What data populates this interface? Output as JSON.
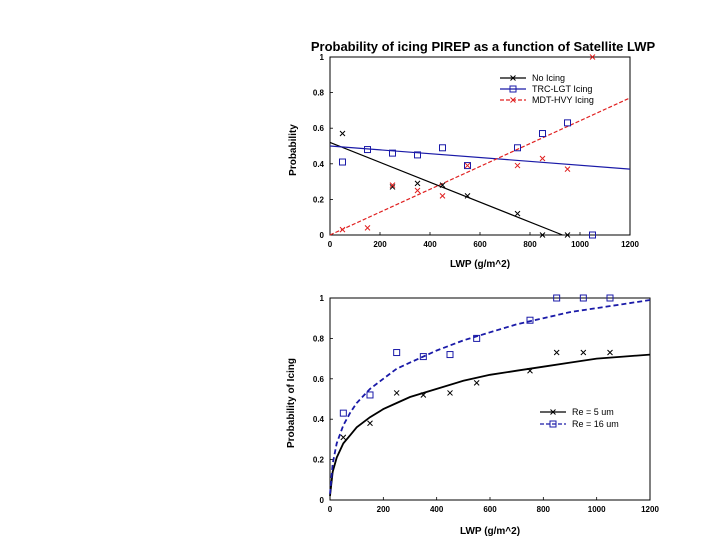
{
  "colors": {
    "black": "#000000",
    "blue": "#1a1aa8",
    "red": "#e02020",
    "frame": "#000000"
  },
  "chart_data": [
    {
      "type": "scatter",
      "title": "Probability of icing PIREP as a function of Satellite LWP",
      "xlabel": "LWP (g/m^2)",
      "ylabel": "Probability",
      "xlim": [
        0,
        1200
      ],
      "ylim": [
        0,
        1
      ],
      "xticks": [
        "0",
        "200",
        "400",
        "600",
        "800",
        "1000",
        "1200"
      ],
      "yticks": [
        "0",
        "0.2",
        "0.4",
        "0.6",
        "0.8",
        "1"
      ],
      "legend_position": "top-right",
      "series": [
        {
          "name": "No Icing",
          "color": "#000000",
          "marker": "x",
          "line": "solid",
          "fit": [
            [
              0,
              0.52
            ],
            [
              930,
              0.0
            ]
          ],
          "points": [
            [
              50,
              0.57
            ],
            [
              250,
              0.27
            ],
            [
              350,
              0.29
            ],
            [
              450,
              0.28
            ],
            [
              550,
              0.22
            ],
            [
              750,
              0.12
            ],
            [
              850,
              0.0
            ],
            [
              950,
              0.0
            ]
          ]
        },
        {
          "name": "TRC-LGT Icing",
          "color": "#1a1aa8",
          "marker": "square",
          "line": "solid",
          "fit": [
            [
              0,
              0.5
            ],
            [
              1200,
              0.37
            ]
          ],
          "points": [
            [
              50,
              0.41
            ],
            [
              150,
              0.48
            ],
            [
              250,
              0.46
            ],
            [
              350,
              0.45
            ],
            [
              450,
              0.49
            ],
            [
              550,
              0.39
            ],
            [
              750,
              0.49
            ],
            [
              850,
              0.57
            ],
            [
              950,
              0.63
            ],
            [
              1050,
              0.0
            ]
          ]
        },
        {
          "name": "MDT-HVY Icing",
          "color": "#e02020",
          "marker": "x",
          "line": "dashed",
          "fit": [
            [
              0,
              0.0
            ],
            [
              1200,
              0.77
            ]
          ],
          "points": [
            [
              50,
              0.03
            ],
            [
              150,
              0.04
            ],
            [
              250,
              0.28
            ],
            [
              350,
              0.25
            ],
            [
              450,
              0.22
            ],
            [
              550,
              0.39
            ],
            [
              750,
              0.39
            ],
            [
              850,
              0.43
            ],
            [
              950,
              0.37
            ],
            [
              1050,
              1.0
            ]
          ]
        }
      ]
    },
    {
      "type": "scatter",
      "title": "",
      "xlabel": "LWP (g/m^2)",
      "ylabel": "Probability of Icing",
      "xlim": [
        0,
        1200
      ],
      "ylim": [
        0,
        1
      ],
      "xticks": [
        "0",
        "200",
        "400",
        "600",
        "800",
        "1000",
        "1200"
      ],
      "yticks": [
        "0",
        "0.2",
        "0.4",
        "0.6",
        "0.8",
        "1"
      ],
      "legend_position": "bottom-right",
      "series": [
        {
          "name": "Re = 5 um",
          "color": "#000000",
          "marker": "x",
          "line": "solid",
          "curve": [
            [
              0,
              0.02
            ],
            [
              10,
              0.14
            ],
            [
              25,
              0.21
            ],
            [
              50,
              0.28
            ],
            [
              75,
              0.32
            ],
            [
              100,
              0.36
            ],
            [
              150,
              0.41
            ],
            [
              200,
              0.45
            ],
            [
              250,
              0.48
            ],
            [
              300,
              0.51
            ],
            [
              400,
              0.55
            ],
            [
              500,
              0.59
            ],
            [
              600,
              0.62
            ],
            [
              700,
              0.64
            ],
            [
              800,
              0.66
            ],
            [
              900,
              0.68
            ],
            [
              1000,
              0.7
            ],
            [
              1100,
              0.71
            ],
            [
              1200,
              0.72
            ]
          ],
          "points": [
            [
              50,
              0.31
            ],
            [
              150,
              0.38
            ],
            [
              250,
              0.53
            ],
            [
              350,
              0.52
            ],
            [
              450,
              0.53
            ],
            [
              550,
              0.58
            ],
            [
              750,
              0.64
            ],
            [
              850,
              0.73
            ],
            [
              950,
              0.73
            ],
            [
              1050,
              0.73
            ]
          ]
        },
        {
          "name": "Re = 16 um",
          "color": "#1a1aa8",
          "marker": "square",
          "line": "dashed",
          "curve": [
            [
              0,
              0.03
            ],
            [
              10,
              0.18
            ],
            [
              25,
              0.28
            ],
            [
              50,
              0.37
            ],
            [
              75,
              0.43
            ],
            [
              100,
              0.48
            ],
            [
              150,
              0.55
            ],
            [
              200,
              0.6
            ],
            [
              250,
              0.65
            ],
            [
              300,
              0.68
            ],
            [
              400,
              0.74
            ],
            [
              500,
              0.79
            ],
            [
              600,
              0.83
            ],
            [
              700,
              0.87
            ],
            [
              800,
              0.9
            ],
            [
              900,
              0.93
            ],
            [
              1000,
              0.95
            ],
            [
              1100,
              0.97
            ],
            [
              1200,
              0.99
            ]
          ],
          "points": [
            [
              50,
              0.43
            ],
            [
              150,
              0.52
            ],
            [
              250,
              0.73
            ],
            [
              350,
              0.71
            ],
            [
              450,
              0.72
            ],
            [
              550,
              0.8
            ],
            [
              750,
              0.89
            ],
            [
              850,
              1.0
            ],
            [
              950,
              1.0
            ],
            [
              1050,
              1.0
            ]
          ]
        }
      ]
    }
  ]
}
